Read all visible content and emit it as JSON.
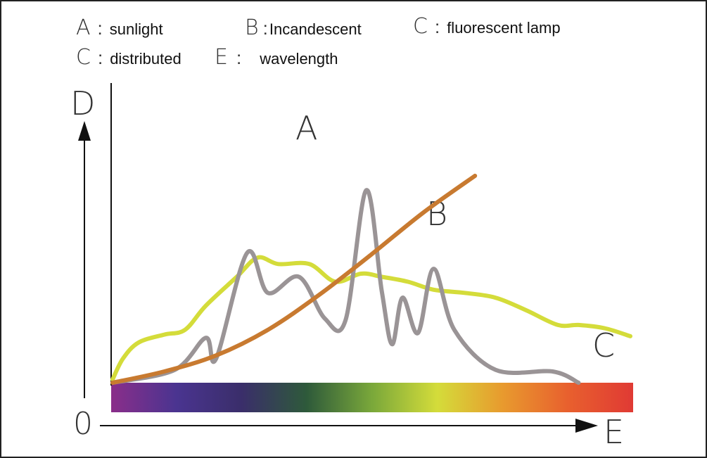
{
  "legend": [
    {
      "letter": "A",
      "colon": ":",
      "text": "sunlight"
    },
    {
      "letter": "B",
      "colon": ":",
      "text": "Incandescent"
    },
    {
      "letter": "C",
      "colon": ":",
      "text": "fluorescent lamp"
    },
    {
      "letter": "C",
      "colon": ":",
      "text": "distributed"
    },
    {
      "letter": "E",
      "colon": ":",
      "text": "wavelength"
    }
  ],
  "chart_data": {
    "type": "line",
    "xlabel": "E",
    "ylabel": "D",
    "origin_label": "0",
    "grid": false,
    "series": [
      {
        "name": "A",
        "color": "#d4dc3a",
        "values": [
          [
            0,
            0.02
          ],
          [
            2,
            0.15
          ],
          [
            5,
            0.25
          ],
          [
            10,
            0.3
          ],
          [
            14,
            0.33
          ],
          [
            18,
            0.48
          ],
          [
            24,
            0.66
          ],
          [
            28,
            0.78
          ],
          [
            32,
            0.74
          ],
          [
            38,
            0.74
          ],
          [
            43,
            0.63
          ],
          [
            48,
            0.68
          ],
          [
            52,
            0.66
          ],
          [
            57,
            0.63
          ],
          [
            62,
            0.58
          ],
          [
            68,
            0.56
          ],
          [
            74,
            0.53
          ],
          [
            80,
            0.45
          ],
          [
            86,
            0.36
          ],
          [
            90,
            0.36
          ],
          [
            95,
            0.34
          ],
          [
            100,
            0.29
          ]
        ]
      },
      {
        "name": "B",
        "color": "#c87a30",
        "values": [
          [
            0,
            0.0
          ],
          [
            10,
            0.07
          ],
          [
            20,
            0.17
          ],
          [
            30,
            0.33
          ],
          [
            40,
            0.55
          ],
          [
            50,
            0.8
          ],
          [
            60,
            1.06
          ],
          [
            70,
            1.29
          ]
        ]
      },
      {
        "name": "C",
        "color": "#9a9496",
        "values": [
          [
            0,
            0.0
          ],
          [
            12,
            0.08
          ],
          [
            18,
            0.28
          ],
          [
            20,
            0.15
          ],
          [
            26,
            0.81
          ],
          [
            30,
            0.56
          ],
          [
            36,
            0.66
          ],
          [
            41,
            0.4
          ],
          [
            45,
            0.39
          ],
          [
            49,
            1.2
          ],
          [
            52,
            0.57
          ],
          [
            54,
            0.24
          ],
          [
            56,
            0.53
          ],
          [
            59,
            0.31
          ],
          [
            62,
            0.71
          ],
          [
            66,
            0.33
          ],
          [
            74,
            0.08
          ],
          [
            85,
            0.07
          ],
          [
            90,
            0.0
          ]
        ]
      }
    ],
    "spectrum": {
      "label": "wavelength band",
      "colors": [
        "#8a2e8a",
        "#4a3490",
        "#3a2e6a",
        "#2e5a3a",
        "#7aa83a",
        "#d4dc3a",
        "#e89a2e",
        "#e8602e",
        "#e03a34"
      ]
    },
    "annotations": [
      {
        "text": "A",
        "series": "A"
      },
      {
        "text": "B",
        "series": "B"
      },
      {
        "text": "C",
        "series": "C"
      }
    ]
  }
}
